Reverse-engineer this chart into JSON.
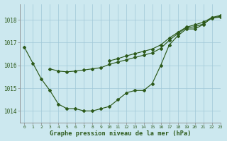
{
  "background_color": "#cce8ef",
  "grid_color": "#a0c8d8",
  "line_color": "#2d5a1b",
  "xlabel": "Graphe pression niveau de la mer (hPa)",
  "xlim": [
    -0.5,
    23
  ],
  "ylim": [
    1013.5,
    1018.7
  ],
  "yticks": [
    1014,
    1015,
    1016,
    1017,
    1018
  ],
  "xticks": [
    0,
    1,
    2,
    3,
    4,
    5,
    6,
    7,
    8,
    9,
    10,
    11,
    12,
    13,
    14,
    15,
    16,
    17,
    18,
    19,
    20,
    21,
    22,
    23
  ],
  "series": [
    [
      1016.8,
      1016.1,
      1015.4,
      1014.9,
      1014.3,
      1014.1,
      1014.1,
      1014.0,
      1014.0,
      1014.1,
      1014.2,
      1014.5,
      1014.8,
      1014.9,
      1014.9,
      1015.2,
      1016.0,
      1016.9,
      1017.3,
      1017.6,
      1017.6,
      1017.8,
      1018.1,
      1018.15
    ],
    [
      null,
      null,
      null,
      1015.85,
      1015.75,
      1015.72,
      1015.75,
      1015.8,
      1015.85,
      1015.9,
      1016.05,
      1016.15,
      1016.25,
      1016.35,
      1016.45,
      1016.55,
      1016.75,
      1017.1,
      1017.4,
      1017.65,
      1017.7,
      1017.82,
      1018.08,
      1018.12
    ],
    [
      null,
      null,
      null,
      null,
      null,
      null,
      null,
      null,
      null,
      null,
      1016.2,
      1016.3,
      1016.42,
      1016.52,
      1016.62,
      1016.72,
      1016.9,
      1017.2,
      1017.45,
      1017.68,
      1017.78,
      1017.9,
      1018.1,
      1018.2
    ]
  ]
}
